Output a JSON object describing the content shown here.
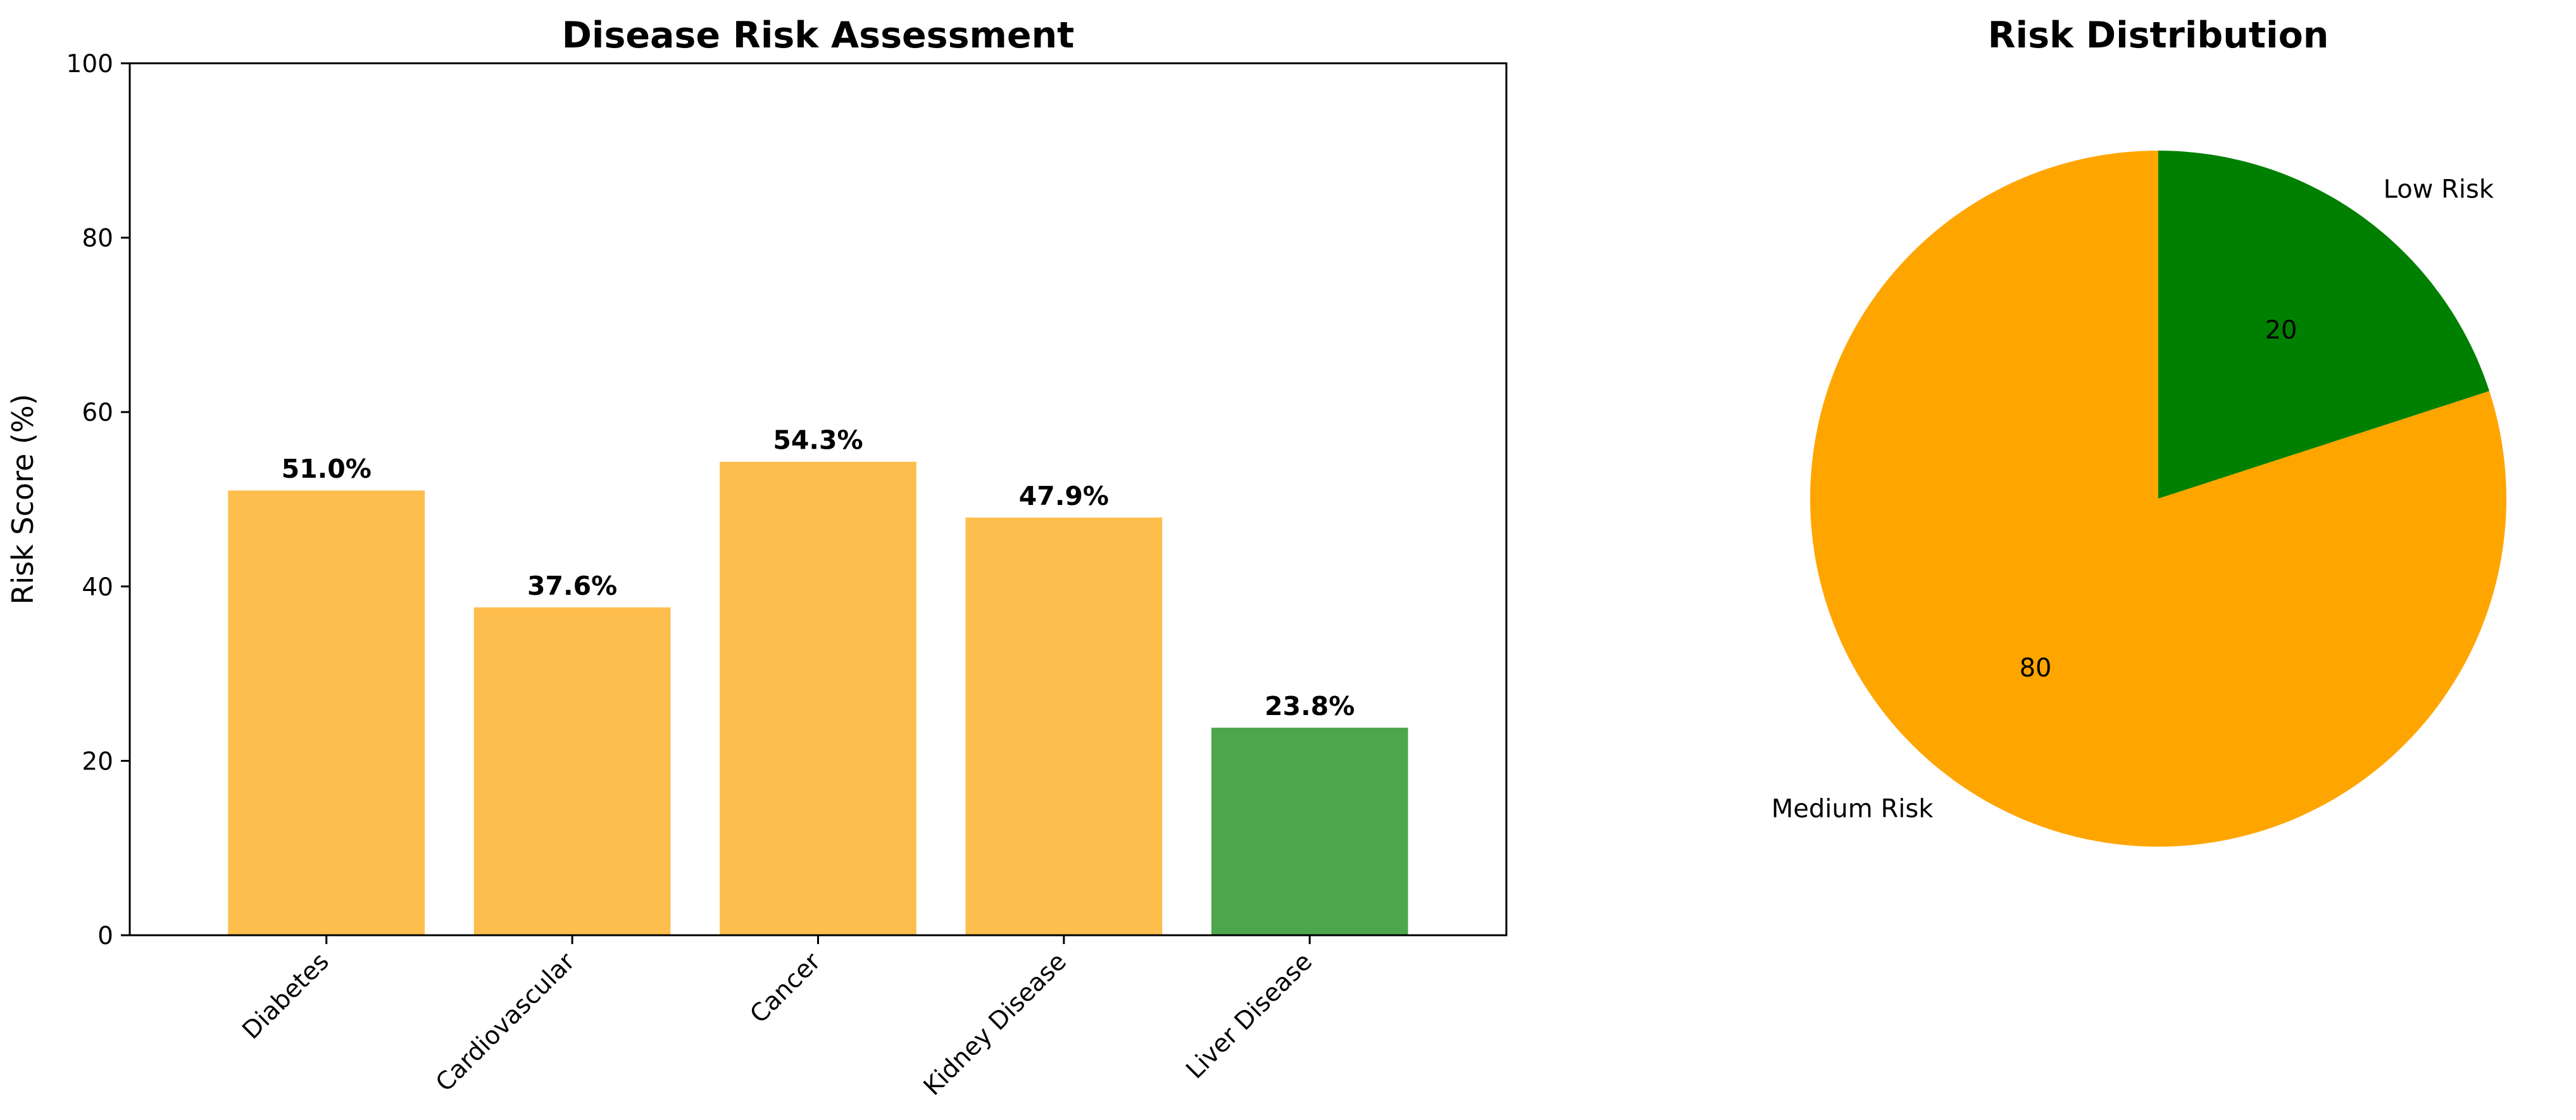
{
  "chart_data": [
    {
      "type": "bar",
      "title": "Disease Risk Assessment",
      "xlabel": "",
      "ylabel": "Risk Score (%)",
      "ylim": [
        0,
        100
      ],
      "yticks": [
        0,
        20,
        40,
        60,
        80,
        100
      ],
      "categories": [
        "Diabetes",
        "Cardiovascular",
        "Cancer",
        "Kidney Disease",
        "Liver Disease"
      ],
      "values": [
        51.0,
        37.6,
        54.3,
        47.9,
        23.8
      ],
      "data_labels": [
        "51.0%",
        "37.6%",
        "54.3%",
        "47.9%",
        "23.8%"
      ],
      "bar_colors": [
        "#fdbe4d",
        "#fdbe4d",
        "#fdbe4d",
        "#fdbe4d",
        "#4da64d"
      ],
      "grid": false
    },
    {
      "type": "pie",
      "title": "Risk Distribution",
      "labels": [
        "Low Risk",
        "Medium Risk"
      ],
      "values": [
        20,
        80
      ],
      "value_labels": [
        "20",
        "80"
      ],
      "colors": [
        "#008000",
        "#ffa500"
      ],
      "start_angle_deg": 90,
      "direction": "clockwise"
    }
  ]
}
